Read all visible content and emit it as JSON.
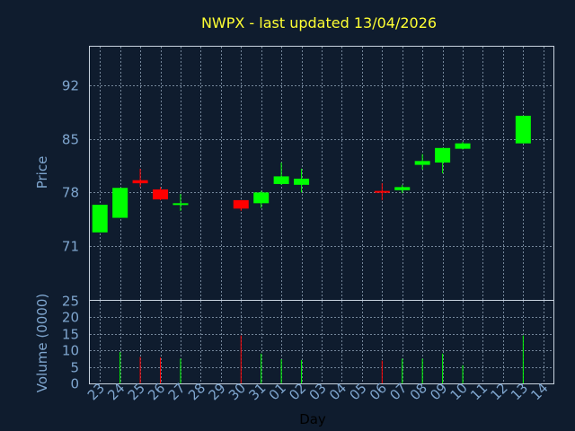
{
  "chart_data": {
    "type": "candlestick",
    "title": "NWPX - last updated 13/04/2026",
    "xlabel": "Day",
    "price_panel": {
      "ylabel": "Price",
      "ylim": [
        64,
        97
      ],
      "yticks": [
        71,
        78,
        85,
        92
      ]
    },
    "volume_panel": {
      "ylabel": "Volume (0000)",
      "ylim": [
        0,
        25
      ],
      "yticks": [
        0,
        5,
        10,
        15,
        20,
        25
      ]
    },
    "grid": true,
    "colors": {
      "up": "#00ff00",
      "down": "#ff0000",
      "title": "#ffff33",
      "axis": "#7fa6cf"
    },
    "days": [
      "23",
      "24",
      "25",
      "26",
      "27",
      "28",
      "29",
      "30",
      "31",
      "01",
      "02",
      "03",
      "04",
      "05",
      "06",
      "07",
      "08",
      "09",
      "10",
      "11",
      "12",
      "13",
      "14"
    ],
    "candles": [
      {
        "day": "23",
        "open": 72.8,
        "close": 76.4,
        "high": 76.4,
        "low": 72.8,
        "volume": 0
      },
      {
        "day": "24",
        "open": 74.7,
        "close": 78.6,
        "high": 78.6,
        "low": 74.7,
        "volume": 9.5
      },
      {
        "day": "25",
        "open": 79.6,
        "close": 79.2,
        "high": 81.1,
        "low": 78.7,
        "volume": 8.0
      },
      {
        "day": "26",
        "open": 78.4,
        "close": 77.1,
        "high": 78.7,
        "low": 77.0,
        "volume": 7.8
      },
      {
        "day": "27",
        "open": 76.4,
        "close": 76.6,
        "high": 77.8,
        "low": 75.6,
        "volume": 7.5
      },
      {
        "day": "30",
        "open": 77.0,
        "close": 75.9,
        "high": 77.0,
        "low": 75.6,
        "volume": 14.5
      },
      {
        "day": "31",
        "open": 76.6,
        "close": 78.0,
        "high": 78.2,
        "low": 76.0,
        "volume": 9.0
      },
      {
        "day": "01",
        "open": 79.1,
        "close": 80.1,
        "high": 81.9,
        "low": 79.0,
        "volume": 7.3
      },
      {
        "day": "02",
        "open": 79.0,
        "close": 79.8,
        "high": 81.1,
        "low": 78.0,
        "volume": 7.1
      },
      {
        "day": "06",
        "open": 78.2,
        "close": 78.0,
        "high": 79.2,
        "low": 77.0,
        "volume": 6.9
      },
      {
        "day": "07",
        "open": 78.3,
        "close": 78.7,
        "high": 79.0,
        "low": 77.9,
        "volume": 7.5
      },
      {
        "day": "08",
        "open": 81.6,
        "close": 82.1,
        "high": 83.0,
        "low": 81.0,
        "volume": 7.5
      },
      {
        "day": "09",
        "open": 81.9,
        "close": 83.8,
        "high": 83.8,
        "low": 80.5,
        "volume": 9.0
      },
      {
        "day": "10",
        "open": 83.7,
        "close": 84.4,
        "high": 84.6,
        "low": 83.6,
        "volume": 5.5
      },
      {
        "day": "13",
        "open": 84.4,
        "close": 88.0,
        "high": 88.0,
        "low": 84.4,
        "volume": 14.5
      }
    ]
  }
}
